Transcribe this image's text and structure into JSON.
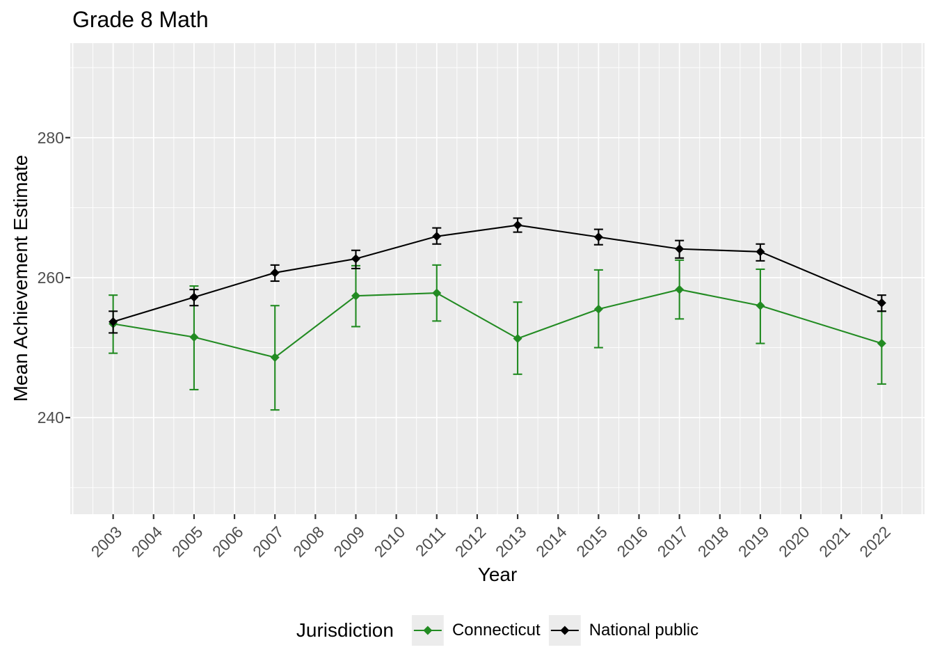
{
  "chart_data": {
    "type": "line",
    "title": "Grade 8 Math",
    "xlabel": "Year",
    "ylabel": "Mean Achievement Estimate",
    "legend": {
      "title": "Jurisdiction",
      "position": "bottom"
    },
    "x_ticks": [
      2003,
      2004,
      2005,
      2006,
      2007,
      2008,
      2009,
      2010,
      2011,
      2012,
      2013,
      2014,
      2015,
      2016,
      2017,
      2018,
      2019,
      2020,
      2021,
      2022
    ],
    "y_ticks": [
      240,
      260,
      280
    ],
    "y_minor": [
      230,
      250,
      270,
      290
    ],
    "xlim": [
      2001.94,
      2023.06
    ],
    "ylim": [
      226.2,
      293.5
    ],
    "grid": true,
    "error_bars": true,
    "marker": "diamond",
    "series": [
      {
        "name": "Connecticut",
        "color": "#228B22",
        "x": [
          2003,
          2005,
          2007,
          2009,
          2011,
          2013,
          2015,
          2017,
          2019,
          2022
        ],
        "values": [
          253.4,
          251.5,
          248.6,
          257.4,
          257.8,
          251.3,
          255.5,
          258.3,
          256.0,
          250.6
        ],
        "ci_low": [
          249.2,
          244.0,
          241.1,
          253.0,
          253.8,
          246.2,
          250.0,
          254.1,
          250.6,
          244.8
        ],
        "ci_high": [
          257.5,
          258.8,
          256.0,
          261.7,
          261.8,
          256.5,
          261.1,
          262.5,
          261.2,
          255.2
        ]
      },
      {
        "name": "National public",
        "color": "#000000",
        "x": [
          2003,
          2005,
          2007,
          2009,
          2011,
          2013,
          2015,
          2017,
          2019,
          2022
        ],
        "values": [
          253.7,
          257.2,
          260.7,
          262.7,
          265.9,
          267.5,
          265.8,
          264.1,
          263.7,
          256.4
        ],
        "ci_low": [
          252.1,
          256.0,
          259.5,
          261.3,
          264.8,
          266.5,
          264.7,
          262.8,
          262.4,
          255.2
        ],
        "ci_high": [
          255.2,
          258.3,
          261.8,
          263.9,
          267.1,
          268.5,
          266.9,
          265.3,
          264.8,
          257.5
        ]
      }
    ],
    "colors": {
      "panel_bg": "#EBEBEB",
      "grid": "#FFFFFF",
      "axis_text": "#4D4D4D",
      "tick": "#333333",
      "legend_key_bg": "#ECECEC",
      "title": "#000000"
    }
  }
}
